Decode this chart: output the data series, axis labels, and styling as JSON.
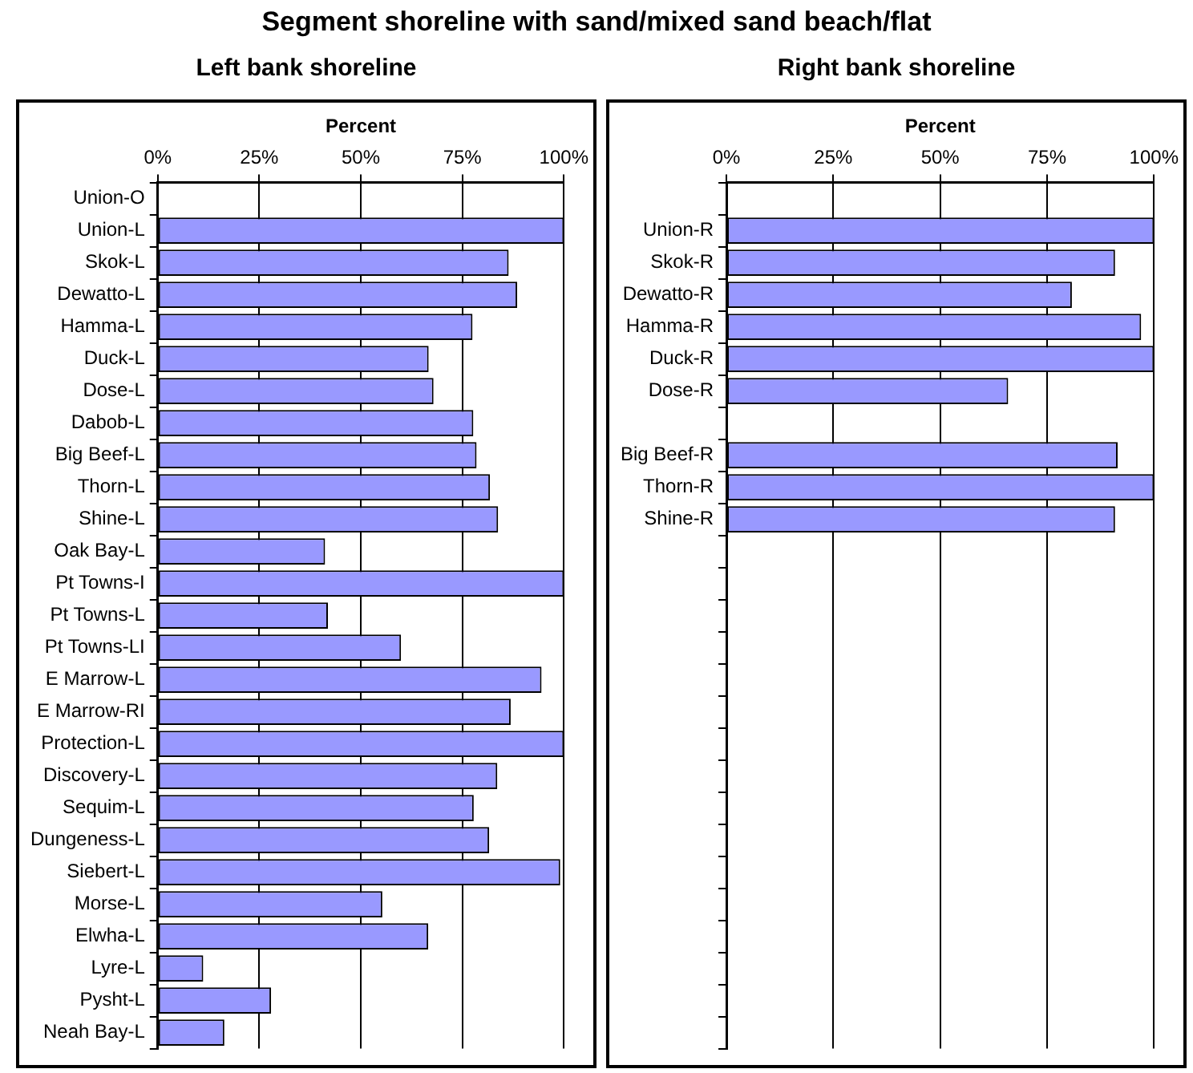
{
  "chart_data": [
    {
      "type": "bar",
      "title": "Segment shoreline with sand/mixed sand beach/flat",
      "subtitle": "Left bank shoreline",
      "xlabel": "Percent",
      "orientation": "horizontal",
      "color": "#9999ff",
      "grid": "x",
      "categories": [
        "Union-O",
        "Union-L",
        "Skok-L",
        "Dewatto-L",
        "Hamma-L",
        "Duck-L",
        "Dose-L",
        "Dabob-L",
        "Big Beef-L",
        "Thorn-L",
        "Shine-L",
        "Oak Bay-L",
        "Pt Towns-I",
        "Pt Towns-L",
        "Pt Towns-LI",
        "E Marrow-L",
        "E Marrow-RI",
        "Protection-L",
        "Discovery-L",
        "Sequim-L",
        "Dungeness-L",
        "Siebert-L",
        "Morse-L",
        "Elwha-L",
        "Lyre-L",
        "Pysht-L",
        "Neah Bay-L"
      ],
      "values": [
        null,
        100,
        86.4,
        88.5,
        77.5,
        66.7,
        67.9,
        77.7,
        78.5,
        81.8,
        83.8,
        41.2,
        100,
        41.9,
        59.9,
        94.5,
        86.9,
        100,
        83.6,
        77.8,
        81.6,
        99.1,
        55.3,
        66.6,
        11.2,
        27.9,
        16.4
      ],
      "xlim": [
        0,
        100
      ],
      "xticks": [
        {
          "value": 0,
          "label": "0%"
        },
        {
          "value": 25,
          "label": "25%"
        },
        {
          "value": 50,
          "label": "50%"
        },
        {
          "value": 75,
          "label": "75%"
        },
        {
          "value": 100,
          "label": "100%"
        }
      ]
    },
    {
      "type": "bar",
      "subtitle": "Right bank shoreline",
      "xlabel": "Percent",
      "orientation": "horizontal",
      "color": "#9999ff",
      "grid": "x",
      "categories": [
        null,
        "Union-R",
        "Skok-R",
        "Dewatto-R",
        "Hamma-R",
        "Duck-R",
        "Dose-R",
        null,
        "Big Beef-R",
        "Thorn-R",
        "Shine-R",
        null,
        null,
        null,
        null,
        null,
        null,
        null,
        null,
        null,
        null,
        null,
        null,
        null,
        null,
        null,
        null
      ],
      "values": [
        null,
        100,
        90.9,
        80.8,
        97,
        100,
        65.9,
        null,
        91.5,
        100,
        90.9,
        null,
        null,
        null,
        null,
        null,
        null,
        null,
        null,
        null,
        null,
        null,
        null,
        null,
        null,
        null,
        null
      ],
      "xlim": [
        0,
        100
      ],
      "xticks": [
        {
          "value": 0,
          "label": "0%"
        },
        {
          "value": 25,
          "label": "25%"
        },
        {
          "value": 50,
          "label": "50%"
        },
        {
          "value": 75,
          "label": "75%"
        },
        {
          "value": 100,
          "label": "100%"
        }
      ]
    }
  ]
}
